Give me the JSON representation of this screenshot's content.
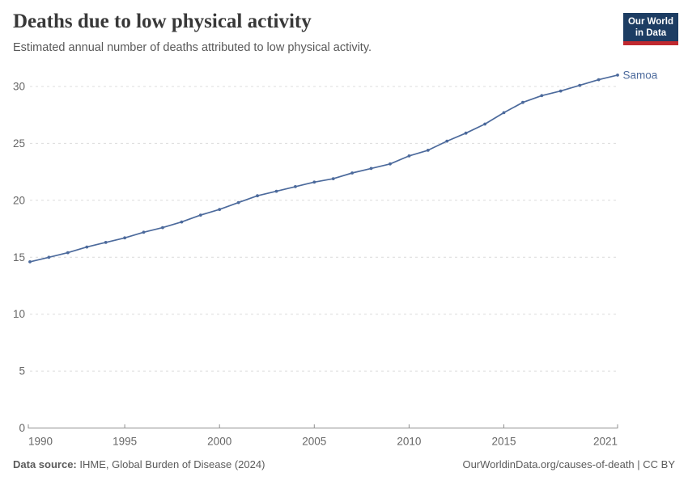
{
  "header": {
    "title": "Deaths due to low physical activity",
    "subtitle": "Estimated annual number of deaths attributed to low physical activity.",
    "logo": {
      "line1": "Our World",
      "line2": "in Data",
      "bg_color": "#1d3d63",
      "accent_color": "#c0292f",
      "text_color": "#ffffff"
    }
  },
  "chart_data": {
    "type": "line",
    "title": "Deaths due to low physical activity",
    "xlabel": "",
    "ylabel": "",
    "x": [
      1990,
      1991,
      1992,
      1993,
      1994,
      1995,
      1996,
      1997,
      1998,
      1999,
      2000,
      2001,
      2002,
      2003,
      2004,
      2005,
      2006,
      2007,
      2008,
      2009,
      2010,
      2011,
      2012,
      2013,
      2014,
      2015,
      2016,
      2017,
      2018,
      2019,
      2020,
      2021
    ],
    "series": [
      {
        "name": "Samoa",
        "color": "#4c6a9c",
        "values": [
          14.6,
          15.0,
          15.4,
          15.9,
          16.3,
          16.7,
          17.2,
          17.6,
          18.1,
          18.7,
          19.2,
          19.8,
          20.4,
          20.8,
          21.2,
          21.6,
          21.9,
          22.4,
          22.8,
          23.2,
          23.9,
          24.4,
          25.2,
          25.9,
          26.7,
          27.7,
          28.6,
          29.2,
          29.6,
          30.1,
          30.6,
          31.0
        ]
      }
    ],
    "ylim": [
      0,
      31
    ],
    "yticks": [
      0,
      5,
      10,
      15,
      20,
      25,
      30
    ],
    "xticks": [
      1990,
      1995,
      2000,
      2005,
      2010,
      2015,
      2021
    ],
    "grid": "horizontal-dashed",
    "legend_position": "end-of-line",
    "colors": {
      "grid": "#dcdcdc",
      "axis": "#8f8f8f",
      "tick_text": "#666666"
    }
  },
  "footer": {
    "datasource_label": "Data source:",
    "datasource_value": "IHME, Global Burden of Disease (2024)",
    "credit": "OurWorldinData.org/causes-of-death | CC BY"
  }
}
